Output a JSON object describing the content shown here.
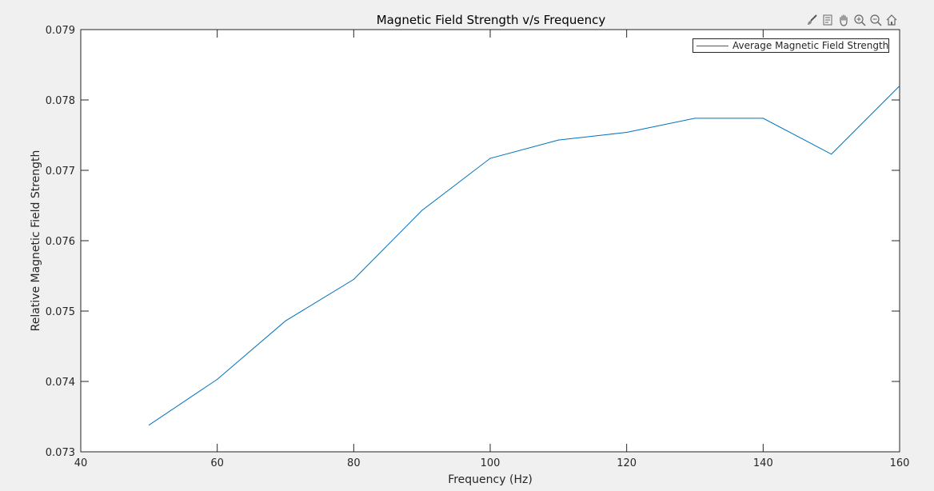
{
  "chart_data": {
    "type": "line",
    "title": "Magnetic Field Strength v/s Frequency",
    "xlabel": "Frequency (Hz)",
    "ylabel": "Relative Magnetic Field Strength",
    "xlim": [
      40,
      160
    ],
    "ylim": [
      0.073,
      0.079
    ],
    "xticks": [
      "40",
      "60",
      "80",
      "100",
      "120",
      "140",
      "160"
    ],
    "yticks": [
      "0.073",
      "0.074",
      "0.075",
      "0.076",
      "0.077",
      "0.078",
      "0.079"
    ],
    "grid": false,
    "legend_position": "top-right",
    "series": [
      {
        "name": "Average Magnetic Field Strength",
        "color": "#0072bd",
        "x": [
          50,
          60,
          70,
          80,
          90,
          100,
          110,
          120,
          130,
          140,
          150,
          160
        ],
        "y": [
          0.07338,
          0.07403,
          0.07486,
          0.07545,
          0.07643,
          0.07717,
          0.07743,
          0.07754,
          0.07774,
          0.07774,
          0.07723,
          0.0782
        ]
      }
    ]
  },
  "toolbar": {
    "icons": [
      "brush-icon",
      "datatip-icon",
      "pan-icon",
      "zoom-in-icon",
      "zoom-out-icon",
      "home-icon"
    ]
  }
}
